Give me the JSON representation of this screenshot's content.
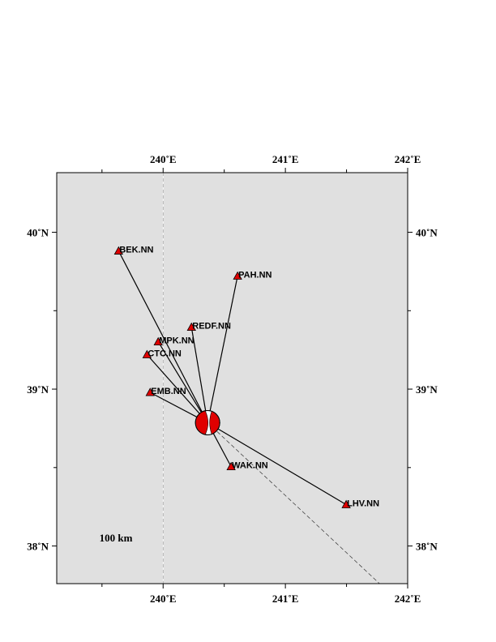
{
  "map": {
    "lonlim": [
      239.13,
      242
    ],
    "latlim": [
      37.76,
      40.38
    ],
    "lonticks": [
      {
        "value": 240,
        "label": "240˚E"
      },
      {
        "value": 241,
        "label": "241˚E"
      },
      {
        "value": 242,
        "label": "242˚E"
      }
    ],
    "latticks": [
      {
        "value": 38,
        "label": "38˚N"
      },
      {
        "value": 39,
        "label": "39˚N"
      },
      {
        "value": 40,
        "label": "40˚N"
      }
    ],
    "minor_lonticks": [
      239.5,
      240.5,
      241.5
    ],
    "minor_latticks": [
      38.5,
      39.5
    ],
    "meridian": 240,
    "background": "#e0e0e0",
    "station_color": "#e00000",
    "event": {
      "lon": 240.364,
      "lat": 38.786
    },
    "dashed_line": {
      "lon": [
        240.364,
        241.77
      ],
      "lat": [
        38.786,
        37.76
      ]
    },
    "scale_label": "100 km",
    "stations": [
      {
        "name": "BEK.NN",
        "lon": 239.636,
        "lat": 39.881
      },
      {
        "name": "PAH.NN",
        "lon": 240.609,
        "lat": 39.721
      },
      {
        "name": "REDF.NN",
        "lon": 240.232,
        "lat": 39.395
      },
      {
        "name": "MPK.NN",
        "lon": 239.96,
        "lat": 39.302
      },
      {
        "name": "CTC.NN",
        "lon": 239.868,
        "lat": 39.22
      },
      {
        "name": "EMB.NN",
        "lon": 239.894,
        "lat": 38.979
      },
      {
        "name": "WAK.NN",
        "lon": 240.556,
        "lat": 38.506
      },
      {
        "name": "LHV.NN",
        "lon": 241.497,
        "lat": 38.264
      }
    ]
  }
}
